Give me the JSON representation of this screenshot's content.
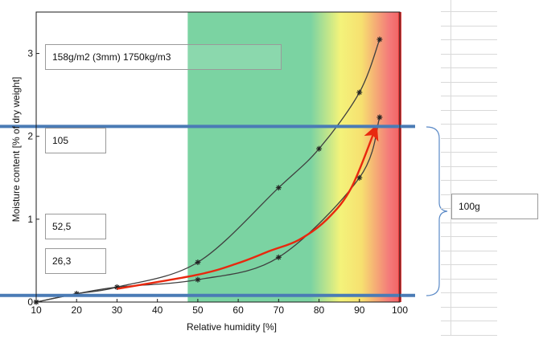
{
  "chart_data": {
    "type": "line",
    "xlabel": "Relative humidity [%]",
    "ylabel": "Moisture content [% of dry weight]",
    "xlim": [
      10,
      100
    ],
    "ylim": [
      0,
      3.5
    ],
    "x_ticks": [
      "10",
      "20",
      "30",
      "40",
      "50",
      "60",
      "70",
      "80",
      "90",
      "100"
    ],
    "y_ticks": [
      "0",
      "1",
      "2",
      "3"
    ],
    "series": [
      {
        "name": "",
        "color": "#3f3f3f",
        "marker": "asterisk",
        "x": [
          10,
          20,
          30,
          50,
          70,
          80,
          90,
          95
        ],
        "y": [
          0.0,
          0.1,
          0.18,
          0.48,
          1.38,
          1.85,
          2.53,
          3.17
        ]
      },
      {
        "name": "",
        "color": "#3f3f3f",
        "marker": "asterisk",
        "x": [
          10,
          20,
          30,
          50,
          70,
          90,
          95
        ],
        "y": [
          0.0,
          0.1,
          0.18,
          0.27,
          0.54,
          1.5,
          2.23
        ]
      },
      {
        "name": "",
        "color": "#e8280e",
        "marker": "none",
        "arrow": true,
        "x": [
          30,
          50,
          60,
          68,
          75,
          82,
          88,
          94
        ],
        "y": [
          0.16,
          0.33,
          0.47,
          0.62,
          0.75,
          1.0,
          1.38,
          2.1
        ]
      }
    ],
    "bands": [
      {
        "from": 47.5,
        "to": 80,
        "color": "#6fcf97"
      },
      {
        "from": 80,
        "to": 87,
        "color": "#ecee7b"
      },
      {
        "from": 87,
        "to": 100,
        "color": "#f26d6d"
      }
    ],
    "hlines": [
      {
        "y": 2.12,
        "color": "#4a7bb5"
      },
      {
        "y": 0.08,
        "color": "#4a7bb5"
      }
    ],
    "annotations": {
      "density": "158g/m2 (3mm) 1750kg/m3",
      "upper_value": "105",
      "mid_value": "52,5",
      "low_value": "26,3",
      "range_value": "100g"
    },
    "grid": false,
    "legend": "none"
  }
}
